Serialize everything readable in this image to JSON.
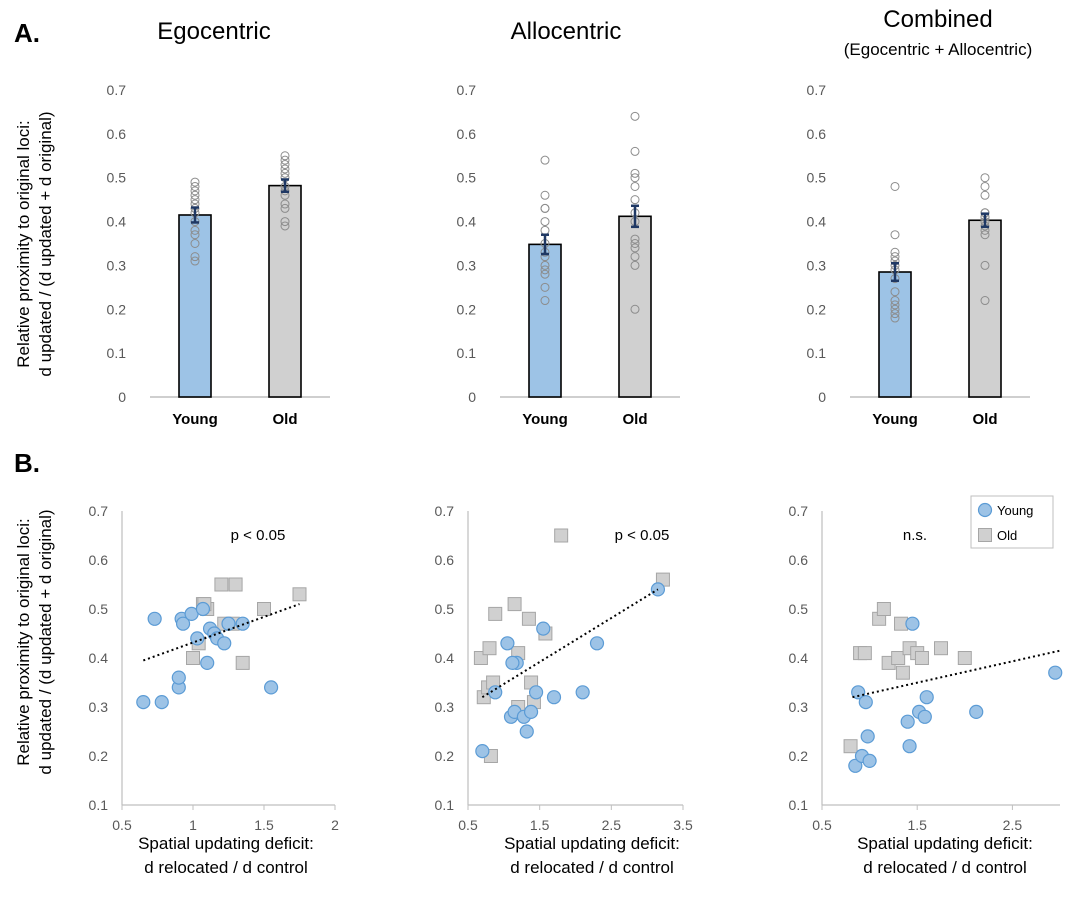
{
  "panel_labels": {
    "a": "A.",
    "b": "B."
  },
  "columns": [
    {
      "title": "Egocentric",
      "subtitle": ""
    },
    {
      "title": "Allocentric",
      "subtitle": ""
    },
    {
      "title": "Combined",
      "subtitle": "(Egocentric + Allocentric)"
    }
  ],
  "ylabel": {
    "line1": "Relative proximity to original loci:",
    "line2": "d updated / (d updated + d original)"
  },
  "xlabel": {
    "line1": "Spatial updating deficit:",
    "line2": "d relocated / d control"
  },
  "colors": {
    "young": "#9dc3e6",
    "young_edge": "#5b9bd5",
    "old": "#d0d0d0",
    "old_edge": "#a6a6a6",
    "errorbar": "#1f3864",
    "trend": "#000000"
  },
  "chart_data": [
    {
      "type": "bar",
      "title": "Egocentric",
      "categories": [
        "Young",
        "Old"
      ],
      "values": [
        0.415,
        0.482
      ],
      "errors": [
        0.017,
        0.014
      ],
      "ylim": [
        0,
        0.7
      ],
      "yticks": [
        0,
        0.1,
        0.2,
        0.3,
        0.4,
        0.5,
        0.6,
        0.7
      ],
      "points": [
        [
          0.31,
          0.32,
          0.35,
          0.37,
          0.38,
          0.4,
          0.42,
          0.43,
          0.44,
          0.45,
          0.46,
          0.47,
          0.48,
          0.49
        ],
        [
          0.39,
          0.4,
          0.43,
          0.44,
          0.46,
          0.47,
          0.48,
          0.5,
          0.51,
          0.52,
          0.53,
          0.54,
          0.55
        ]
      ]
    },
    {
      "type": "bar",
      "title": "Allocentric",
      "categories": [
        "Young",
        "Old"
      ],
      "values": [
        0.348,
        0.412
      ],
      "errors": [
        0.022,
        0.024
      ],
      "ylim": [
        0,
        0.7
      ],
      "yticks": [
        0,
        0.1,
        0.2,
        0.3,
        0.4,
        0.5,
        0.6,
        0.7
      ],
      "points": [
        [
          0.22,
          0.25,
          0.28,
          0.29,
          0.3,
          0.32,
          0.33,
          0.35,
          0.38,
          0.4,
          0.43,
          0.43,
          0.46,
          0.54
        ],
        [
          0.2,
          0.3,
          0.32,
          0.34,
          0.35,
          0.36,
          0.4,
          0.42,
          0.45,
          0.48,
          0.5,
          0.51,
          0.56,
          0.64
        ]
      ]
    },
    {
      "type": "bar",
      "title": "Combined",
      "categories": [
        "Young",
        "Old"
      ],
      "values": [
        0.285,
        0.403
      ],
      "errors": [
        0.02,
        0.015
      ],
      "ylim": [
        0,
        0.7
      ],
      "yticks": [
        0,
        0.1,
        0.2,
        0.3,
        0.4,
        0.5,
        0.6,
        0.7
      ],
      "points": [
        [
          0.18,
          0.19,
          0.2,
          0.21,
          0.22,
          0.24,
          0.27,
          0.29,
          0.3,
          0.31,
          0.32,
          0.33,
          0.37,
          0.48
        ],
        [
          0.22,
          0.3,
          0.37,
          0.38,
          0.39,
          0.4,
          0.41,
          0.41,
          0.42,
          0.42,
          0.46,
          0.48,
          0.5
        ]
      ]
    },
    {
      "type": "scatter",
      "annotation": "p < 0.05",
      "xlim": [
        0.5,
        2
      ],
      "xticks": [
        0.5,
        1,
        1.5,
        2
      ],
      "ylim": [
        0.1,
        0.7
      ],
      "yticks": [
        0.1,
        0.2,
        0.3,
        0.4,
        0.5,
        0.6,
        0.7
      ],
      "trend": [
        [
          0.65,
          0.395
        ],
        [
          1.75,
          0.51
        ]
      ],
      "series": [
        {
          "name": "Young",
          "x": [
            0.65,
            0.78,
            0.9,
            0.9,
            0.92,
            0.93,
            0.99,
            1.03,
            1.07,
            1.1,
            1.12,
            1.15,
            1.17,
            1.22,
            1.25,
            1.35,
            1.55,
            0.73
          ],
          "y": [
            0.31,
            0.31,
            0.34,
            0.36,
            0.48,
            0.47,
            0.49,
            0.44,
            0.5,
            0.39,
            0.46,
            0.45,
            0.44,
            0.43,
            0.47,
            0.47,
            0.34,
            0.48
          ]
        },
        {
          "name": "Old",
          "x": [
            1.0,
            1.04,
            1.07,
            1.1,
            1.2,
            1.22,
            1.28,
            1.3,
            1.35,
            1.5,
            1.75,
            1.08
          ],
          "y": [
            0.4,
            0.43,
            0.51,
            0.5,
            0.55,
            0.47,
            0.47,
            0.55,
            0.39,
            0.5,
            0.53,
            0.51
          ]
        }
      ]
    },
    {
      "type": "scatter",
      "annotation": "p < 0.05",
      "xlim": [
        0.5,
        3.5
      ],
      "xticks": [
        0.5,
        1.5,
        2.5,
        3.5
      ],
      "ylim": [
        0.1,
        0.7
      ],
      "yticks": [
        0.1,
        0.2,
        0.3,
        0.4,
        0.5,
        0.6,
        0.7
      ],
      "trend": [
        [
          0.7,
          0.32
        ],
        [
          3.15,
          0.54
        ]
      ],
      "series": [
        {
          "name": "Young",
          "x": [
            0.7,
            0.88,
            1.05,
            1.1,
            1.15,
            1.18,
            1.28,
            1.32,
            1.38,
            1.45,
            1.55,
            1.7,
            2.1,
            2.3,
            3.15,
            1.12
          ],
          "y": [
            0.21,
            0.33,
            0.43,
            0.28,
            0.29,
            0.39,
            0.28,
            0.25,
            0.29,
            0.33,
            0.46,
            0.32,
            0.33,
            0.43,
            0.54,
            0.39
          ]
        },
        {
          "name": "Old",
          "x": [
            0.68,
            0.72,
            0.78,
            0.8,
            0.82,
            0.85,
            0.88,
            1.15,
            1.2,
            1.2,
            1.35,
            1.38,
            1.42,
            1.58,
            1.8,
            3.22
          ],
          "y": [
            0.4,
            0.32,
            0.34,
            0.42,
            0.2,
            0.35,
            0.49,
            0.51,
            0.41,
            0.3,
            0.48,
            0.35,
            0.31,
            0.45,
            0.65,
            0.56
          ]
        }
      ]
    },
    {
      "type": "scatter",
      "annotation": "n.s.",
      "legend": {
        "placement": "top-right",
        "entries": [
          "Young",
          "Old"
        ]
      },
      "xlim": [
        0.5,
        3
      ],
      "xticks": [
        0.5,
        1.5,
        2.5
      ],
      "ylim": [
        0.1,
        0.7
      ],
      "yticks": [
        0.1,
        0.2,
        0.3,
        0.4,
        0.5,
        0.6,
        0.7
      ],
      "trend": [
        [
          0.82,
          0.32
        ],
        [
          3.0,
          0.415
        ]
      ],
      "series": [
        {
          "name": "Young",
          "x": [
            0.85,
            0.88,
            0.92,
            0.96,
            0.98,
            1.0,
            1.4,
            1.42,
            1.45,
            1.52,
            1.58,
            1.6,
            2.12,
            2.95
          ],
          "y": [
            0.18,
            0.33,
            0.2,
            0.31,
            0.24,
            0.19,
            0.27,
            0.22,
            0.47,
            0.29,
            0.28,
            0.32,
            0.29,
            0.37
          ]
        },
        {
          "name": "Old",
          "x": [
            0.8,
            0.9,
            0.95,
            1.1,
            1.15,
            1.2,
            1.3,
            1.33,
            1.35,
            1.42,
            1.5,
            1.55,
            1.75,
            2.0
          ],
          "y": [
            0.22,
            0.41,
            0.41,
            0.48,
            0.5,
            0.39,
            0.4,
            0.47,
            0.37,
            0.42,
            0.41,
            0.4,
            0.42,
            0.4
          ]
        }
      ]
    }
  ]
}
